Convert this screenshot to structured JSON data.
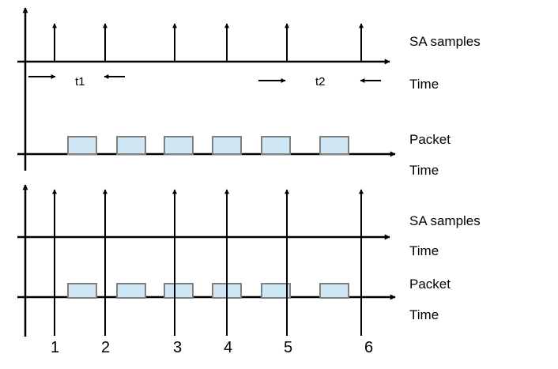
{
  "top": {
    "sa_label": "SA samples",
    "time_label_1": "Time",
    "packet_label": "Packet",
    "time_label_2": "Time",
    "interval_1": "t1",
    "interval_2": "t2"
  },
  "bottom": {
    "sa_label": "SA samples",
    "time_label_1": "Time",
    "packet_label": "Packet",
    "time_label_2": "Time",
    "markers": [
      "1",
      "2",
      "3",
      "4",
      "5",
      "6"
    ]
  },
  "colors": {
    "line": "#000000",
    "packet_fill": "#cfe6f5",
    "packet_stroke": "#808080"
  }
}
